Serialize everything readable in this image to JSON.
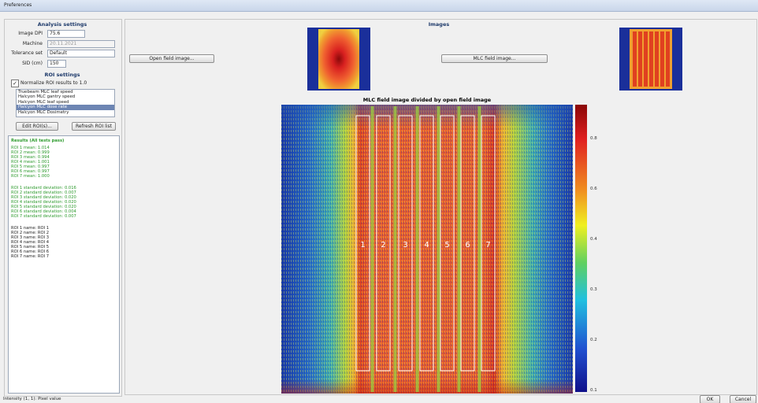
{
  "window": {
    "title": "Preferences"
  },
  "analysis_settings": {
    "heading": "Analysis settings",
    "fields": [
      {
        "label": "Image DPI",
        "value": "75.6"
      },
      {
        "label": "Machine",
        "value": "20.11.2021"
      },
      {
        "label": "Tolerance set",
        "value": "Default"
      },
      {
        "label": "SID (cm)",
        "value": "150"
      }
    ]
  },
  "roi_settings": {
    "heading": "ROI settings",
    "normalize": "Normalize ROI results to 1.0",
    "tests": [
      "Truebeam MLC leaf speed",
      "Halcyon MLC gantry speed",
      "Halcyon MLC leaf speed",
      "Halcyon MLC dose rate",
      "Halcyon MLC Dosimetry"
    ],
    "selected_test": "Halcyon MLC dose rate",
    "edit_button": "Edit ROI(s)...",
    "refresh_button": "Refresh ROI list"
  },
  "results": {
    "status": "Results (All tests pass)",
    "means": [
      "ROI 1 mean: 1.014",
      "ROI 2 mean: 0.999",
      "ROI 3 mean: 0.994",
      "ROI 4 mean: 1.001",
      "ROI 5 mean: 0.997",
      "ROI 6 mean: 0.997",
      "ROI 7 mean: 1.000"
    ],
    "std_devs": [
      "ROI 1 standard deviation: 0.016",
      "ROI 2 standard deviation: 0.007",
      "ROI 3 standard deviation: 0.020",
      "ROI 4 standard deviation: 0.020",
      "ROI 5 standard deviation: 0.020",
      "ROI 6 standard deviation: 0.004",
      "ROI 7 standard deviation: 0.007"
    ],
    "names": [
      "ROI 1 name: ROI 1",
      "ROI 2 name: ROI 2",
      "ROI 3 name: ROI 3",
      "ROI 4 name: ROI 4",
      "ROI 5 name: ROI 5",
      "ROI 6 name: ROI 6",
      "ROI 7 name: ROI 7"
    ]
  },
  "images": {
    "heading": "Images",
    "open_button": "Open field image...",
    "mlc_button": "MLC field image...",
    "plot_title": "MLC field image divided by open field image",
    "roi_labels": [
      "1",
      "2",
      "3",
      "4",
      "5",
      "6",
      "7"
    ],
    "colorbar_labels": [
      "0.8",
      "0.6",
      "0.4",
      "0.3",
      "0.2",
      "0.1"
    ]
  },
  "status_bar": "Intensity (1, 1): Pixel value",
  "ok_button": "OK",
  "cancel_button": "Cancel"
}
